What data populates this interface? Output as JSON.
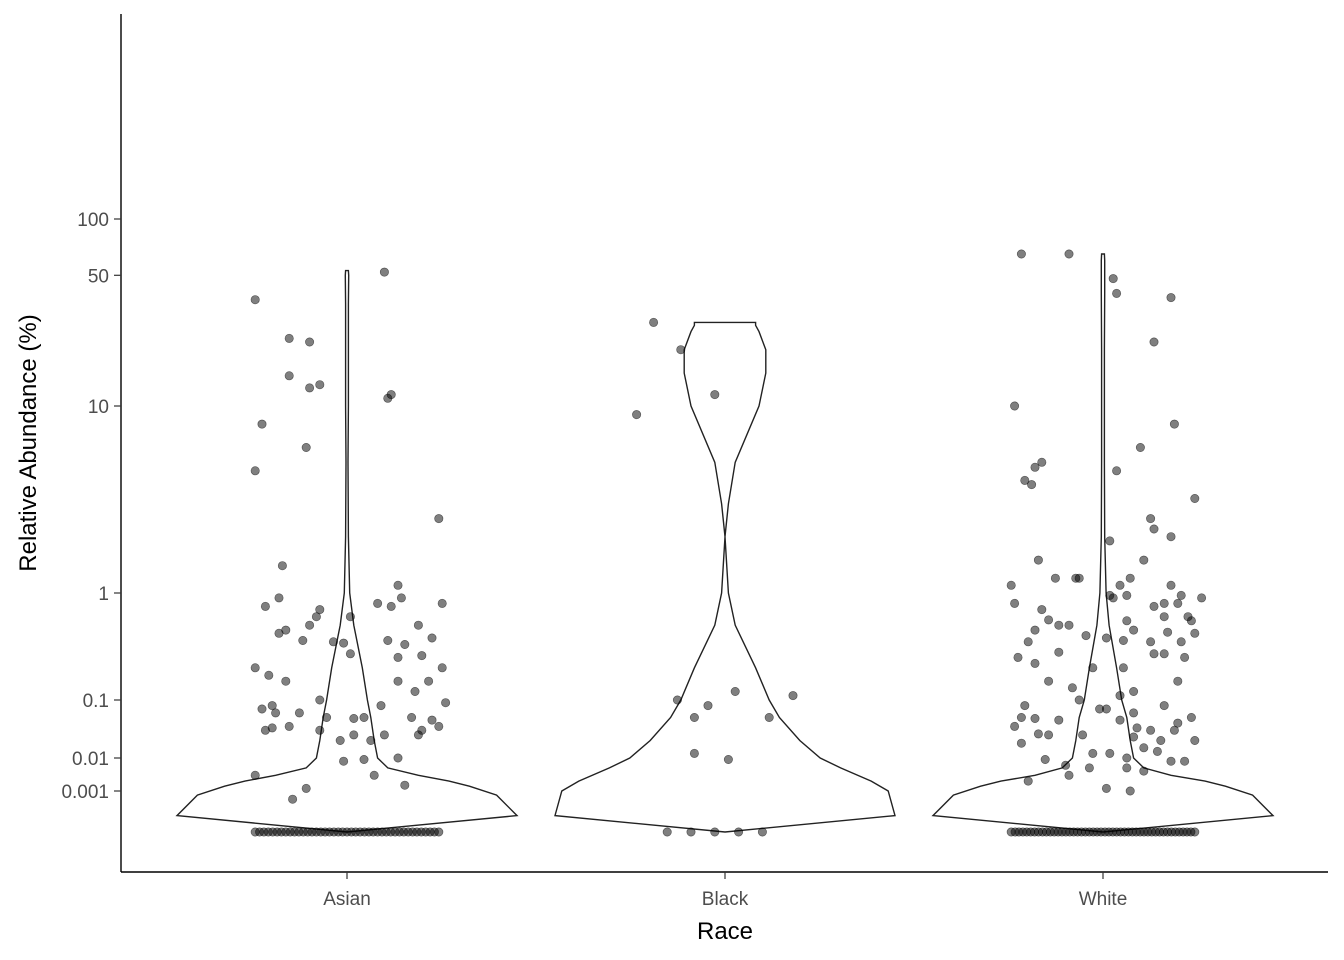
{
  "chart_data": {
    "type": "violin",
    "title": "",
    "xlabel": "Race",
    "ylabel": "Relative Abundance (%)",
    "y_scale": "pseudo-log",
    "y_ticks": [
      100,
      50,
      10,
      1,
      0.1,
      0.01,
      0.001
    ],
    "y_tick_labels": [
      "100",
      "50",
      "10",
      "1",
      "0.1",
      "0.01",
      "0.001"
    ],
    "ylim": [
      0,
      150
    ],
    "categories": [
      "Asian",
      "Black",
      "White"
    ],
    "point_color": "#000000",
    "violin_outline_color": "#222222",
    "series": [
      {
        "category": "Asian",
        "jitter": [
          [
            0.11,
            52
          ],
          [
            -0.27,
            37
          ],
          [
            -0.17,
            23
          ],
          [
            -0.11,
            22
          ],
          [
            -0.17,
            14.5
          ],
          [
            -0.08,
            13
          ],
          [
            -0.11,
            12.5
          ],
          [
            0.13,
            11.5
          ],
          [
            0.12,
            11
          ],
          [
            -0.25,
            8
          ],
          [
            -0.12,
            6
          ],
          [
            -0.27,
            4.5
          ],
          [
            0.27,
            2.5
          ],
          [
            -0.19,
            1.4
          ],
          [
            0.15,
            1.1
          ],
          [
            -0.2,
            0.9
          ],
          [
            0.16,
            0.9
          ],
          [
            0.28,
            0.8
          ],
          [
            -0.24,
            0.75
          ],
          [
            0.09,
            0.8
          ],
          [
            0.13,
            0.75
          ],
          [
            -0.08,
            0.7
          ],
          [
            -0.09,
            0.6
          ],
          [
            0.01,
            0.6
          ],
          [
            -0.11,
            0.5
          ],
          [
            0.21,
            0.5
          ],
          [
            -0.18,
            0.45
          ],
          [
            -0.2,
            0.42
          ],
          [
            -0.13,
            0.36
          ],
          [
            0.12,
            0.36
          ],
          [
            0.25,
            0.38
          ],
          [
            -0.01,
            0.34
          ],
          [
            -0.04,
            0.35
          ],
          [
            0.17,
            0.33
          ],
          [
            0.01,
            0.27
          ],
          [
            0.15,
            0.25
          ],
          [
            0.22,
            0.26
          ],
          [
            0.28,
            0.2
          ],
          [
            -0.27,
            0.2
          ],
          [
            -0.23,
            0.17
          ],
          [
            0.15,
            0.15
          ],
          [
            0.24,
            0.15
          ],
          [
            -0.18,
            0.15
          ],
          [
            0.2,
            0.12
          ],
          [
            -0.08,
            0.1
          ],
          [
            0.29,
            0.09
          ],
          [
            -0.22,
            0.08
          ],
          [
            0.1,
            0.08
          ],
          [
            -0.25,
            0.07
          ],
          [
            -0.21,
            0.06
          ],
          [
            -0.14,
            0.06
          ],
          [
            0.19,
            0.05
          ],
          [
            0.05,
            0.05
          ],
          [
            -0.06,
            0.05
          ],
          [
            0.02,
            0.048
          ],
          [
            0.25,
            0.045
          ],
          [
            -0.17,
            0.035
          ],
          [
            0.27,
            0.035
          ],
          [
            -0.22,
            0.033
          ],
          [
            -0.24,
            0.03
          ],
          [
            -0.08,
            0.03
          ],
          [
            0.02,
            0.025
          ],
          [
            0.11,
            0.025
          ],
          [
            -0.02,
            0.02
          ],
          [
            0.07,
            0.02
          ],
          [
            0.21,
            0.025
          ],
          [
            0.22,
            0.03
          ],
          [
            0.15,
            0.01
          ],
          [
            0.05,
            0.009
          ],
          [
            -0.01,
            0.008
          ],
          [
            0.08,
            0.003
          ],
          [
            -0.27,
            0.003
          ],
          [
            0.17,
            0.0015
          ],
          [
            -0.12,
            0.0012
          ],
          [
            -0.16,
            0.0008
          ]
        ],
        "zero_count": 43,
        "violin": [
          [
            0.0,
            0
          ],
          [
            0.0004,
            0.5
          ],
          [
            0.0009,
            0.44
          ],
          [
            0.0014,
            0.36
          ],
          [
            0.002,
            0.3
          ],
          [
            0.003,
            0.21
          ],
          [
            0.005,
            0.12
          ],
          [
            0.01,
            0.09
          ],
          [
            0.02,
            0.08
          ],
          [
            0.05,
            0.07
          ],
          [
            0.1,
            0.06
          ],
          [
            0.2,
            0.045
          ],
          [
            0.5,
            0.02
          ],
          [
            1,
            0.008
          ],
          [
            2,
            0.004
          ],
          [
            5,
            0.003
          ],
          [
            10,
            0.004
          ],
          [
            20,
            0.004
          ],
          [
            35,
            0.004
          ],
          [
            50,
            0.005
          ],
          [
            53,
            0.004
          ]
        ]
      },
      {
        "category": "Black",
        "jitter": [
          [
            -0.21,
            28
          ],
          [
            -0.13,
            20
          ],
          [
            -0.26,
            9
          ],
          [
            -0.03,
            11.5
          ],
          [
            0.03,
            0.12
          ],
          [
            -0.14,
            0.1
          ],
          [
            0.2,
            0.11
          ],
          [
            -0.05,
            0.08
          ],
          [
            -0.09,
            0.05
          ],
          [
            0.13,
            0.05
          ],
          [
            -0.09,
            0.012
          ],
          [
            0.01,
            0.009
          ]
        ],
        "zero_count": 5,
        "violin": [
          [
            0.0,
            0
          ],
          [
            0.0004,
            0.5
          ],
          [
            0.001,
            0.48
          ],
          [
            0.002,
            0.43
          ],
          [
            0.005,
            0.34
          ],
          [
            0.01,
            0.28
          ],
          [
            0.02,
            0.22
          ],
          [
            0.05,
            0.16
          ],
          [
            0.1,
            0.13
          ],
          [
            0.2,
            0.09
          ],
          [
            0.5,
            0.03
          ],
          [
            1,
            0.01
          ],
          [
            2,
            0.0
          ],
          [
            3,
            0.01
          ],
          [
            5,
            0.03
          ],
          [
            10,
            0.1
          ],
          [
            15,
            0.12
          ],
          [
            20,
            0.12
          ],
          [
            25,
            0.1
          ],
          [
            27,
            0.09
          ],
          [
            28,
            0.09
          ]
        ]
      },
      {
        "category": "White",
        "jitter": [
          [
            -0.24,
            65
          ],
          [
            -0.1,
            65
          ],
          [
            0.03,
            48
          ],
          [
            0.04,
            40
          ],
          [
            0.2,
            38
          ],
          [
            0.15,
            22
          ],
          [
            -0.26,
            10
          ],
          [
            0.21,
            8
          ],
          [
            0.11,
            6
          ],
          [
            -0.18,
            5
          ],
          [
            -0.2,
            4.7
          ],
          [
            -0.23,
            4
          ],
          [
            -0.21,
            3.8
          ],
          [
            0.04,
            4.5
          ],
          [
            0.27,
            3.2
          ],
          [
            0.14,
            2.5
          ],
          [
            0.2,
            2
          ],
          [
            0.15,
            2.2
          ],
          [
            -0.19,
            1.5
          ],
          [
            0.12,
            1.5
          ],
          [
            0.02,
            1.9
          ],
          [
            -0.27,
            1.1
          ],
          [
            -0.14,
            1.2
          ],
          [
            -0.08,
            1.2
          ],
          [
            0.05,
            1.1
          ],
          [
            0.08,
            1.2
          ],
          [
            0.2,
            1.1
          ],
          [
            0.23,
            0.95
          ],
          [
            -0.07,
            1.2
          ],
          [
            0.02,
            0.95
          ],
          [
            0.07,
            0.95
          ],
          [
            0.29,
            0.9
          ],
          [
            0.03,
            0.9
          ],
          [
            -0.18,
            0.7
          ],
          [
            0.15,
            0.75
          ],
          [
            0.18,
            0.8
          ],
          [
            0.22,
            0.8
          ],
          [
            -0.26,
            0.8
          ],
          [
            0.18,
            0.6
          ],
          [
            0.25,
            0.6
          ],
          [
            0.26,
            0.55
          ],
          [
            0.07,
            0.55
          ],
          [
            -0.16,
            0.56
          ],
          [
            -0.13,
            0.5
          ],
          [
            -0.1,
            0.5
          ],
          [
            -0.2,
            0.45
          ],
          [
            0.09,
            0.45
          ],
          [
            0.19,
            0.43
          ],
          [
            0.27,
            0.42
          ],
          [
            -0.05,
            0.4
          ],
          [
            0.01,
            0.38
          ],
          [
            0.06,
            0.36
          ],
          [
            -0.22,
            0.35
          ],
          [
            0.14,
            0.35
          ],
          [
            0.23,
            0.35
          ],
          [
            -0.13,
            0.28
          ],
          [
            0.15,
            0.27
          ],
          [
            0.18,
            0.27
          ],
          [
            -0.25,
            0.25
          ],
          [
            0.24,
            0.25
          ],
          [
            -0.2,
            0.22
          ],
          [
            -0.03,
            0.2
          ],
          [
            0.06,
            0.2
          ],
          [
            -0.16,
            0.15
          ],
          [
            0.22,
            0.15
          ],
          [
            -0.09,
            0.13
          ],
          [
            0.09,
            0.12
          ],
          [
            0.05,
            0.11
          ],
          [
            -0.07,
            0.1
          ],
          [
            -0.23,
            0.08
          ],
          [
            0.18,
            0.08
          ],
          [
            -0.01,
            0.07
          ],
          [
            0.01,
            0.07
          ],
          [
            0.09,
            0.06
          ],
          [
            -0.24,
            0.05
          ],
          [
            0.26,
            0.05
          ],
          [
            -0.2,
            0.048
          ],
          [
            -0.13,
            0.045
          ],
          [
            0.05,
            0.045
          ],
          [
            0.22,
            0.04
          ],
          [
            -0.26,
            0.035
          ],
          [
            0.1,
            0.033
          ],
          [
            0.14,
            0.03
          ],
          [
            0.21,
            0.03
          ],
          [
            -0.19,
            0.026
          ],
          [
            -0.16,
            0.025
          ],
          [
            -0.06,
            0.025
          ],
          [
            0.09,
            0.023
          ],
          [
            0.17,
            0.02
          ],
          [
            0.27,
            0.02
          ],
          [
            -0.24,
            0.018
          ],
          [
            0.12,
            0.015
          ],
          [
            0.16,
            0.013
          ],
          [
            -0.03,
            0.012
          ],
          [
            0.02,
            0.012
          ],
          [
            0.07,
            0.01
          ],
          [
            -0.17,
            0.009
          ],
          [
            0.2,
            0.008
          ],
          [
            0.24,
            0.008
          ],
          [
            -0.11,
            0.006
          ],
          [
            0.07,
            0.005
          ],
          [
            -0.04,
            0.005
          ],
          [
            0.12,
            0.004
          ],
          [
            -0.22,
            0.002
          ],
          [
            0.01,
            0.0012
          ],
          [
            0.08,
            0.001
          ],
          [
            -0.1,
            0.003
          ]
        ],
        "zero_count": 48,
        "violin": [
          [
            0.0,
            0
          ],
          [
            0.0004,
            0.5
          ],
          [
            0.0009,
            0.44
          ],
          [
            0.0014,
            0.36
          ],
          [
            0.002,
            0.3
          ],
          [
            0.003,
            0.2
          ],
          [
            0.005,
            0.12
          ],
          [
            0.01,
            0.09
          ],
          [
            0.02,
            0.08
          ],
          [
            0.05,
            0.07
          ],
          [
            0.1,
            0.055
          ],
          [
            0.2,
            0.04
          ],
          [
            0.5,
            0.018
          ],
          [
            1,
            0.009
          ],
          [
            2,
            0.005
          ],
          [
            5,
            0.004
          ],
          [
            10,
            0.004
          ],
          [
            20,
            0.004
          ],
          [
            40,
            0.005
          ],
          [
            60,
            0.005
          ],
          [
            65,
            0.004
          ]
        ]
      }
    ]
  }
}
